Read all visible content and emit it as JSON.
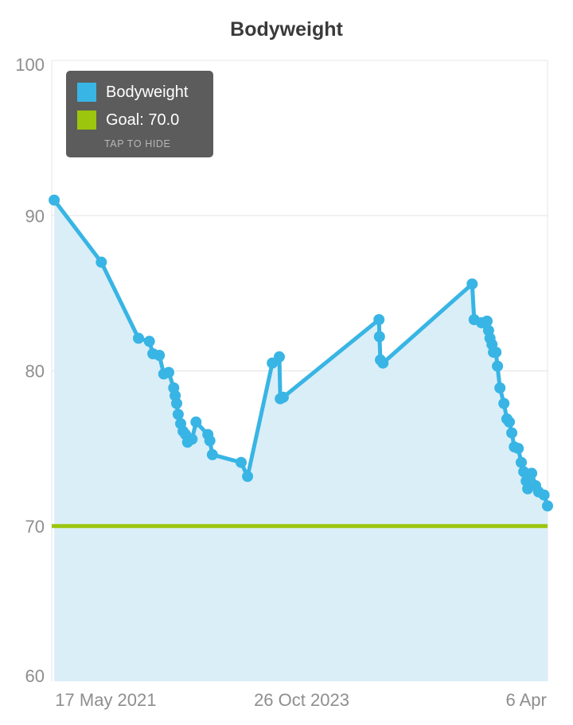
{
  "title": "Bodyweight",
  "legend": {
    "series_label": "Bodyweight",
    "goal_label": "Goal: 70.0",
    "hint": "TAP TO HIDE"
  },
  "colors": {
    "series": "#38b5e4",
    "series_fill": "#daeef8",
    "goal": "#9bc60d",
    "grid": "#e4e4e4",
    "axis_text": "#8e8e8e",
    "title_text": "#3a3a3a",
    "legend_bg": "#5c5c5c",
    "legend_text": "#ffffff",
    "legend_hint_text": "#b8b8b8",
    "background": "#ffffff"
  },
  "chart_data": {
    "type": "line",
    "title": "Bodyweight",
    "xlabel": "",
    "ylabel": "",
    "ylim": [
      60,
      100
    ],
    "y_ticks": [
      60,
      70,
      80,
      90,
      100
    ],
    "x_ticks": [
      {
        "label": "17 May 2021",
        "pos": 0.109
      },
      {
        "label": "26 Oct 2023",
        "pos": 0.504
      },
      {
        "label": "6 Apr",
        "pos": 0.957
      }
    ],
    "goal_value": 70.0,
    "grid": true,
    "legend_position": "top-left",
    "x_axis_note": "time axis, point x given as 0-1 fraction of plot width",
    "series": [
      {
        "name": "Bodyweight",
        "points": [
          [
            0.005,
            91.0
          ],
          [
            0.1,
            87.0
          ],
          [
            0.175,
            82.1
          ],
          [
            0.197,
            81.9
          ],
          [
            0.204,
            81.1
          ],
          [
            0.217,
            81.0
          ],
          [
            0.226,
            79.8
          ],
          [
            0.236,
            79.9
          ],
          [
            0.246,
            78.9
          ],
          [
            0.249,
            78.4
          ],
          [
            0.252,
            77.9
          ],
          [
            0.255,
            77.2
          ],
          [
            0.26,
            76.6
          ],
          [
            0.265,
            76.1
          ],
          [
            0.27,
            75.9
          ],
          [
            0.274,
            75.4
          ],
          [
            0.283,
            75.6
          ],
          [
            0.291,
            76.7
          ],
          [
            0.315,
            75.9
          ],
          [
            0.319,
            75.5
          ],
          [
            0.324,
            74.6
          ],
          [
            0.382,
            74.1
          ],
          [
            0.395,
            73.2
          ],
          [
            0.445,
            80.5
          ],
          [
            0.459,
            80.9
          ],
          [
            0.461,
            78.2
          ],
          [
            0.467,
            78.3
          ],
          [
            0.66,
            83.3
          ],
          [
            0.661,
            82.2
          ],
          [
            0.663,
            80.7
          ],
          [
            0.668,
            80.5
          ],
          [
            0.848,
            85.6
          ],
          [
            0.852,
            83.3
          ],
          [
            0.867,
            83.1
          ],
          [
            0.878,
            83.2
          ],
          [
            0.881,
            82.6
          ],
          [
            0.884,
            82.1
          ],
          [
            0.888,
            81.7
          ],
          [
            0.891,
            81.2
          ],
          [
            0.896,
            81.2
          ],
          [
            0.899,
            80.3
          ],
          [
            0.904,
            78.9
          ],
          [
            0.912,
            77.9
          ],
          [
            0.918,
            76.9
          ],
          [
            0.923,
            76.7
          ],
          [
            0.928,
            76.0
          ],
          [
            0.933,
            75.1
          ],
          [
            0.941,
            75.0
          ],
          [
            0.947,
            74.1
          ],
          [
            0.952,
            73.5
          ],
          [
            0.957,
            72.9
          ],
          [
            0.96,
            72.4
          ],
          [
            0.968,
            73.4
          ],
          [
            0.976,
            72.6
          ],
          [
            0.982,
            72.2
          ],
          [
            0.993,
            72.0
          ],
          [
            1.0,
            71.3
          ]
        ]
      }
    ]
  }
}
